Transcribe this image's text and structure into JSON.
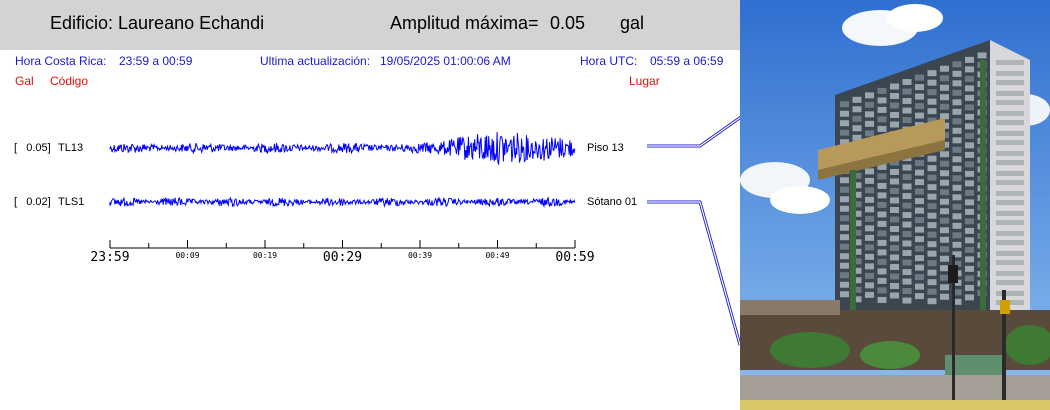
{
  "header": {
    "building": "Edificio: Laureano Echandi",
    "amp_label": "Amplitud máxima=",
    "amp_value": "0.05",
    "amp_unit": "gal"
  },
  "info": {
    "cr_label": "Hora Costa Rica:",
    "cr_range": "23:59 a 00:59",
    "update_label": "Ultima actualización:",
    "update_value": "19/05/2025 01:00:06 AM",
    "utc_label": "Hora UTC:",
    "utc_range": "05:59 a 06:59",
    "col_gal": "Gal",
    "col_code": "Código",
    "col_place": "Lugar"
  },
  "chart_data": {
    "type": "line",
    "title": "",
    "xlabel": "",
    "ylabel": "",
    "x_ticks": [
      "23:59",
      "00:09",
      "00:19",
      "00:29",
      "00:39",
      "00:49",
      "00:59"
    ],
    "series": [
      {
        "name": "TL13",
        "gal_label": "[   0.05]",
        "code": "TL13",
        "place": "Piso 13",
        "max_gal": 0.05
      },
      {
        "name": "TLS1",
        "gal_label": "[   0.02]",
        "code": "TLS1",
        "place": "Sótano 01",
        "max_gal": 0.02
      }
    ],
    "colors": {
      "trace": "#0000ff",
      "axis": "#000000"
    }
  }
}
